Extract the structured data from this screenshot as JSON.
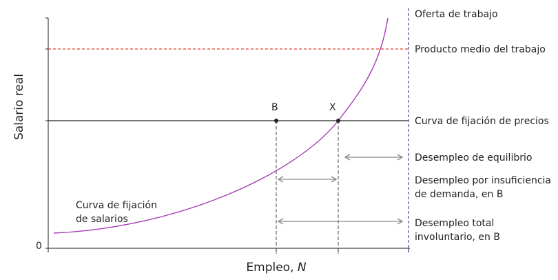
{
  "diagram": {
    "y_axis_title": "Salario real",
    "x_axis_title_main": "Empleo, ",
    "x_axis_title_var": "N",
    "origin_label": "0",
    "point_b_label": "B",
    "point_x_label": "X",
    "labor_supply_label": "Oferta de trabajo",
    "avg_product_label": "Producto medio del trabajo",
    "price_setting_label": "Curva de fijación de precios",
    "equilibrium_unemployment_label": "Desempleo de equilibrio",
    "demand_unemployment_line1": "Desempleo por insuficiencia",
    "demand_unemployment_line2": "de demanda, en B",
    "total_unemployment_line1": "Desempleo total",
    "total_unemployment_line2": "involuntario, en B",
    "wage_curve_line1": "Curva de fijación",
    "wage_curve_line2": "de salarios",
    "colors": {
      "axis": "#444444",
      "wage_curve": "#a43cb4",
      "labor_supply": "#3a4a9c",
      "avg_product": "#e0402a",
      "price_line": "#222222",
      "guide": "#666666",
      "arrow": "#888888",
      "text": "#222222"
    }
  }
}
